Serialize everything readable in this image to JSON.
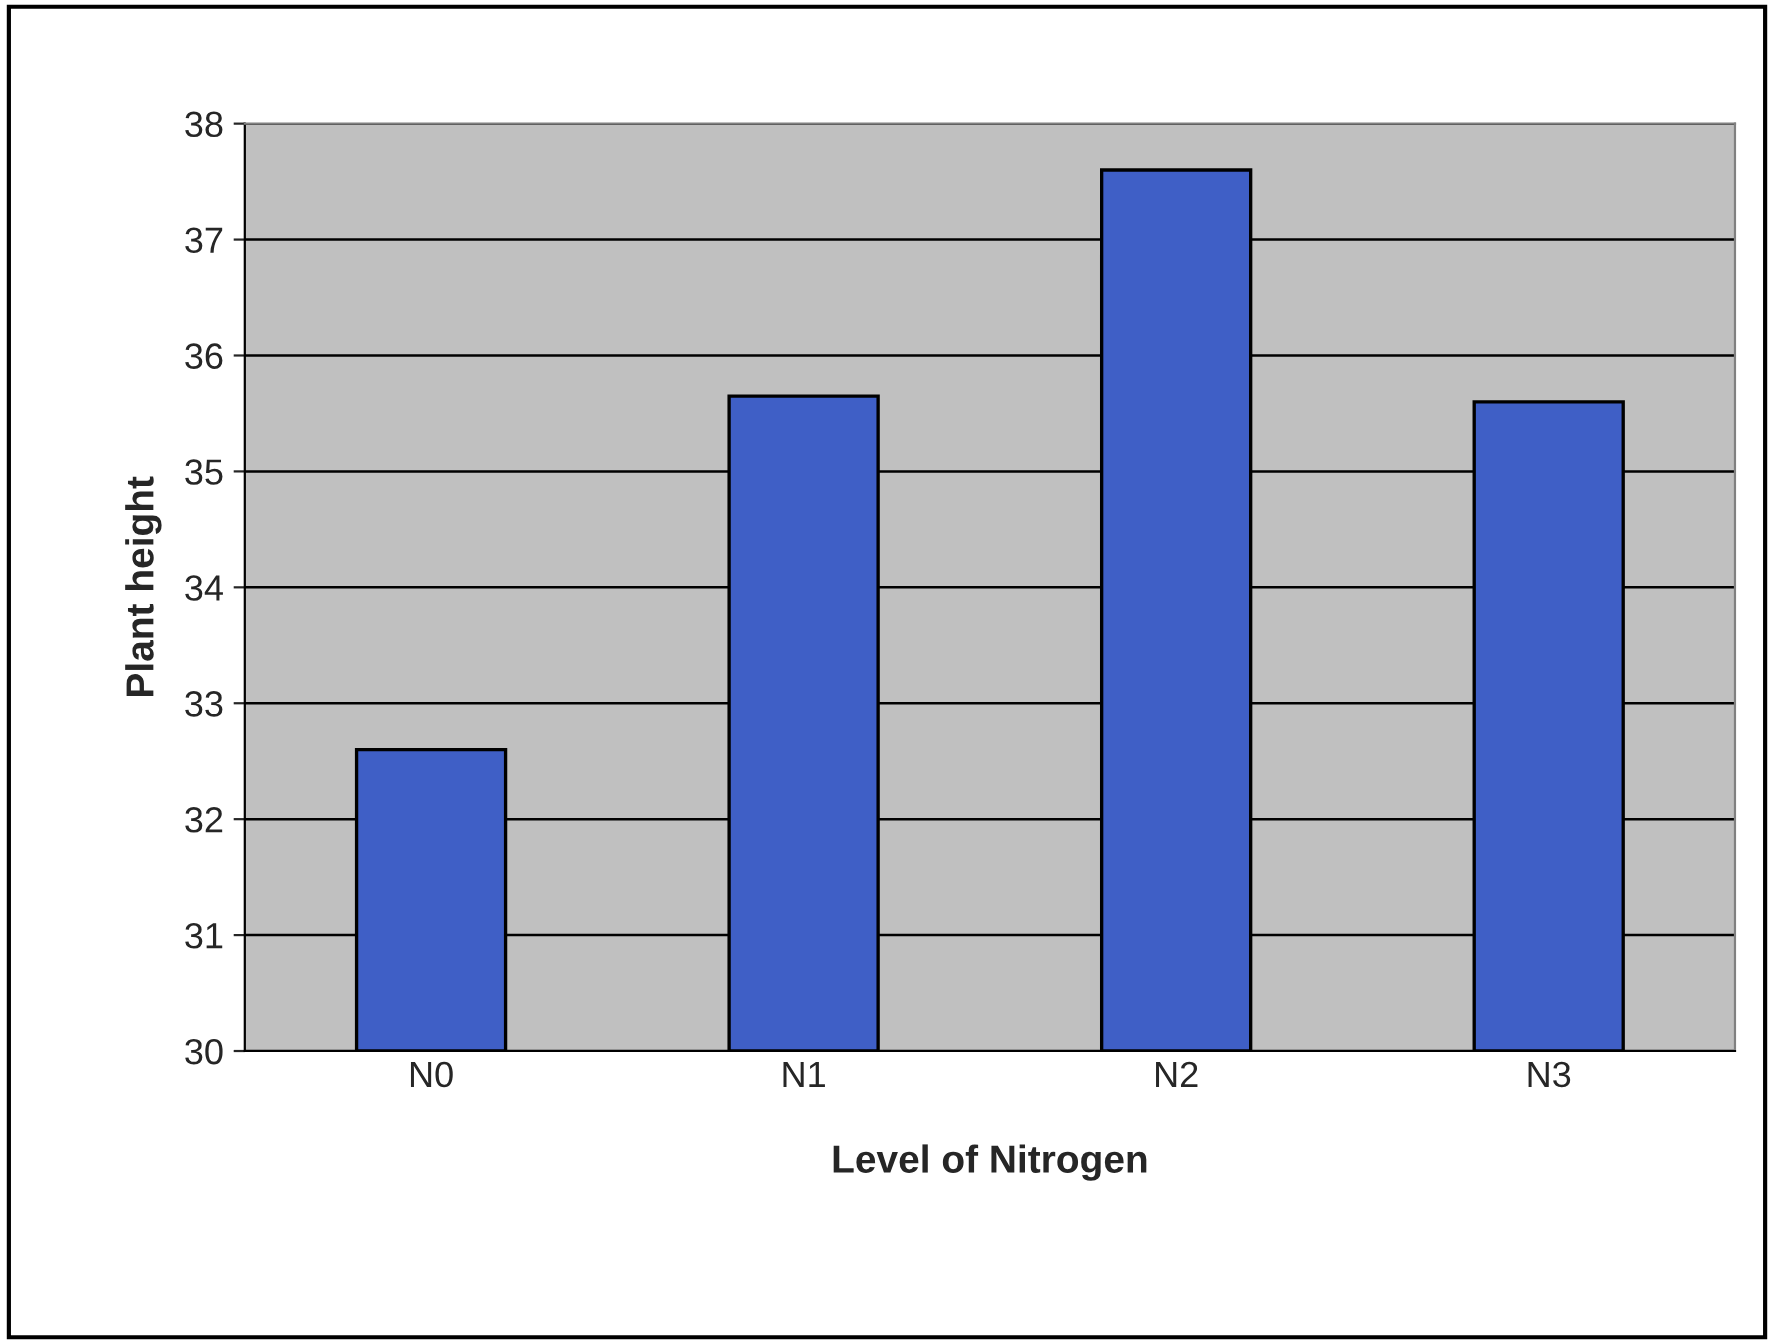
{
  "chart_data": {
    "type": "bar",
    "xlabel": "Level of Nitrogen",
    "ylabel": "Plant height",
    "categories": [
      "N0",
      "N1",
      "N2",
      "N3"
    ],
    "values": [
      32.6,
      35.65,
      37.6,
      35.6
    ],
    "color": "#3f5fc6",
    "ylim": [
      30,
      38
    ],
    "yticks": [
      30,
      31,
      32,
      33,
      34,
      35,
      36,
      37,
      38
    ],
    "grid": "y",
    "legend": false
  }
}
